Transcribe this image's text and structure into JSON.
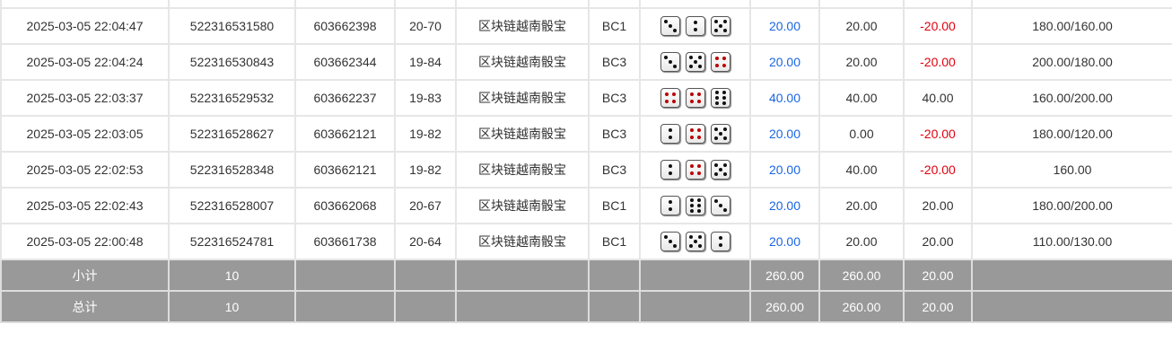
{
  "rows": [
    {
      "time": "",
      "id": "",
      "issue_no": "",
      "period": "",
      "game": "",
      "table": "",
      "dice": [],
      "bet": "",
      "valid": "",
      "win": "",
      "balance": ""
    },
    {
      "time": "2025-03-05 22:04:47",
      "id": "522316531580",
      "issue_no": "603662398",
      "period": "20-70",
      "game": "区块链越南骰宝",
      "table": "BC1",
      "dice": [
        3,
        2,
        5
      ],
      "bet": "20.00",
      "valid": "20.00",
      "win": "-20.00",
      "balance": "180.00/160.00"
    },
    {
      "time": "2025-03-05 22:04:24",
      "id": "522316530843",
      "issue_no": "603662344",
      "period": "19-84",
      "game": "区块链越南骰宝",
      "table": "BC3",
      "dice": [
        3,
        5,
        4
      ],
      "bet": "20.00",
      "valid": "20.00",
      "win": "-20.00",
      "balance": "200.00/180.00"
    },
    {
      "time": "2025-03-05 22:03:37",
      "id": "522316529532",
      "issue_no": "603662237",
      "period": "19-83",
      "game": "区块链越南骰宝",
      "table": "BC3",
      "dice": [
        4,
        4,
        6
      ],
      "bet": "40.00",
      "valid": "40.00",
      "win": "40.00",
      "balance": "160.00/200.00"
    },
    {
      "time": "2025-03-05 22:03:05",
      "id": "522316528627",
      "issue_no": "603662121",
      "period": "19-82",
      "game": "区块链越南骰宝",
      "table": "BC3",
      "dice": [
        2,
        4,
        5
      ],
      "bet": "20.00",
      "valid": "0.00",
      "win": "-20.00",
      "balance": "180.00/120.00"
    },
    {
      "time": "2025-03-05 22:02:53",
      "id": "522316528348",
      "issue_no": "603662121",
      "period": "19-82",
      "game": "区块链越南骰宝",
      "table": "BC3",
      "dice": [
        2,
        4,
        5
      ],
      "bet": "20.00",
      "valid": "40.00",
      "win": "-20.00",
      "balance": "160.00"
    },
    {
      "time": "2025-03-05 22:02:43",
      "id": "522316528007",
      "issue_no": "603662068",
      "period": "20-67",
      "game": "区块链越南骰宝",
      "table": "BC1",
      "dice": [
        2,
        6,
        3
      ],
      "bet": "20.00",
      "valid": "20.00",
      "win": "20.00",
      "balance": "180.00/200.00"
    },
    {
      "time": "2025-03-05 22:00:48",
      "id": "522316524781",
      "issue_no": "603661738",
      "period": "20-64",
      "game": "区块链越南骰宝",
      "table": "BC1",
      "dice": [
        3,
        5,
        2
      ],
      "bet": "20.00",
      "valid": "20.00",
      "win": "20.00",
      "balance": "110.00/130.00"
    }
  ],
  "subtotal": {
    "label": "小计",
    "count": "10",
    "bet": "260.00",
    "valid": "260.00",
    "win": "20.00"
  },
  "total": {
    "label": "总计",
    "count": "10",
    "bet": "260.00",
    "valid": "260.00",
    "win": "20.00"
  },
  "colors": {
    "bet": "#1a66e0",
    "loss": "#e0000f",
    "summary_bg": "#999999"
  }
}
